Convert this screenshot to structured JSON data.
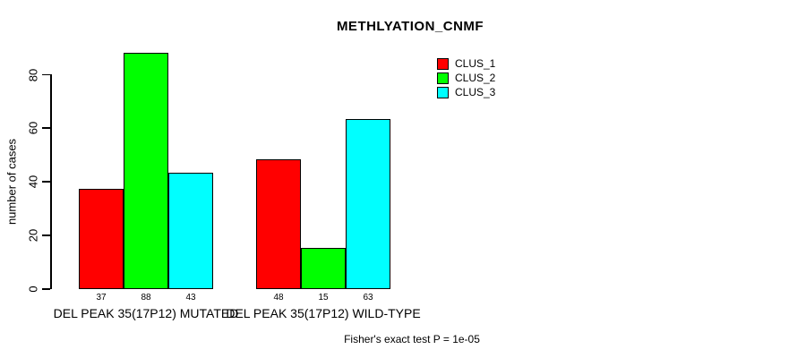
{
  "title": "METHLYATION_CNMF",
  "footnote": "Fisher's exact test P = 1e-05",
  "colors": {
    "clus_1": "#ff0000",
    "clus_2": "#00ff00",
    "clus_3": "#00ffff",
    "axis": "#000000",
    "background": "#ffffff"
  },
  "legend": {
    "position": "top-right",
    "items": [
      {
        "label": "CLUS_1",
        "color": "#ff0000"
      },
      {
        "label": "CLUS_2",
        "color": "#00ff00"
      },
      {
        "label": "CLUS_3",
        "color": "#00ffff"
      }
    ]
  },
  "chart_data": {
    "type": "bar",
    "title": "METHLYATION_CNMF",
    "xlabel": "",
    "ylabel": "number of cases",
    "ylim": [
      0,
      88
    ],
    "yticks": [
      0,
      20,
      40,
      60,
      80
    ],
    "grid": false,
    "legend_position": "top-right",
    "categories": [
      "DEL PEAK 35(17P12) MUTATED",
      "DEL PEAK 35(17P12) WILD-TYPE"
    ],
    "series": [
      {
        "name": "CLUS_1",
        "color": "#ff0000",
        "values": [
          37,
          48
        ]
      },
      {
        "name": "CLUS_2",
        "color": "#00ff00",
        "values": [
          88,
          15
        ]
      },
      {
        "name": "CLUS_3",
        "color": "#00ffff",
        "values": [
          43,
          63
        ]
      }
    ],
    "bar_value_labels": [
      [
        37,
        88,
        43
      ],
      [
        48,
        15,
        63
      ]
    ],
    "annotation": "Fisher's exact test P = 1e-05"
  }
}
